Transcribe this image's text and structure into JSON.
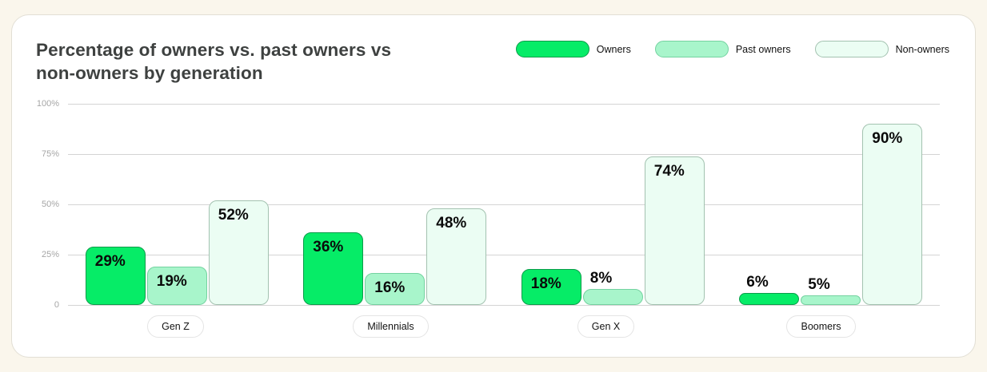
{
  "page": {
    "background_color": "#FAF6EC",
    "card_background": "#FFFFFF",
    "card_border_color": "#E2DFD5"
  },
  "header": {
    "title_line1": "Percentage of owners vs. past owners vs",
    "title_line2": "non-owners by generation"
  },
  "legend": [
    {
      "label": "Owners",
      "fill": "#06EC67",
      "stroke": "#0B9C4A"
    },
    {
      "label": "Past owners",
      "fill": "#A8F5CB",
      "stroke": "#74D2A0"
    },
    {
      "label": "Non-owners",
      "fill": "#EBFDF3",
      "stroke": "#A3C2B0"
    }
  ],
  "chart_data": {
    "type": "bar",
    "title": "Percentage of owners vs. past owners vs non-owners by generation",
    "categories": [
      "Gen Z",
      "Millennials",
      "Gen X",
      "Boomers"
    ],
    "series": [
      {
        "name": "Owners",
        "values": [
          29,
          36,
          18,
          6
        ],
        "fill": "#06EC67",
        "stroke": "#0B9C4A"
      },
      {
        "name": "Past owners",
        "values": [
          19,
          16,
          8,
          5
        ],
        "fill": "#A8F5CB",
        "stroke": "#74D2A0"
      },
      {
        "name": "Non-owners",
        "values": [
          52,
          48,
          74,
          90
        ],
        "fill": "#EBFDF3",
        "stroke": "#A3C2B0"
      }
    ],
    "xlabel": "",
    "ylabel": "",
    "ylim": [
      0,
      100
    ],
    "yticks": [
      "100%",
      "75%",
      "50%",
      "25%",
      "0"
    ],
    "grid": true,
    "legend_position": "top-right",
    "value_label_format": "{v}%",
    "outside_label_threshold": 10
  }
}
